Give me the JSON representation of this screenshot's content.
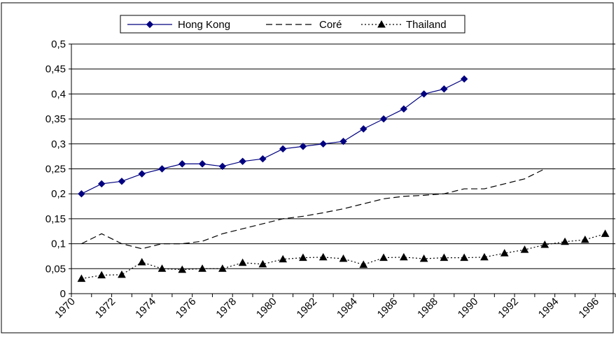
{
  "chart_data": {
    "type": "line",
    "x": [
      1970.5,
      1971.5,
      1972.5,
      1973.5,
      1974.5,
      1975.5,
      1976.5,
      1977.5,
      1978.5,
      1979.5,
      1980.5,
      1981.5,
      1982.5,
      1983.5,
      1984.5,
      1985.5,
      1986.5,
      1987.5,
      1988.5,
      1989.5,
      1990.5,
      1991.5,
      1992.5,
      1993.5,
      1994.5,
      1995.5,
      1996.5
    ],
    "xlim": [
      1970,
      1997
    ],
    "ylim": [
      0,
      0.5
    ],
    "x_ticks": [
      "1970",
      "1972",
      "1974",
      "1976",
      "1978",
      "1980",
      "1982",
      "1984",
      "1986",
      "1988",
      "1990",
      "1992",
      "1994",
      "1996"
    ],
    "y_ticks": [
      "0",
      "0,05",
      "0,1",
      "0,15",
      "0,2",
      "0,25",
      "0,3",
      "0,35",
      "0,4",
      "0,45",
      "0,5"
    ],
    "grid": true,
    "legend_position": "top",
    "series": [
      {
        "name": "Hong Kong",
        "style": "solid-diamond",
        "color": "#000080",
        "values": [
          0.2,
          0.22,
          0.225,
          0.24,
          0.25,
          0.26,
          0.26,
          0.255,
          0.265,
          0.27,
          0.29,
          0.295,
          0.3,
          0.305,
          0.33,
          0.35,
          0.37,
          0.4,
          0.41,
          0.43,
          null,
          null,
          null,
          null,
          null,
          null,
          null
        ]
      },
      {
        "name": "Coré",
        "style": "dashed",
        "color": "#000000",
        "values": [
          0.1,
          0.12,
          0.1,
          0.09,
          0.1,
          0.1,
          0.105,
          0.12,
          0.13,
          0.14,
          0.15,
          0.155,
          0.162,
          0.17,
          0.18,
          0.19,
          0.195,
          0.197,
          0.2,
          0.21,
          0.21,
          0.22,
          0.23,
          0.25,
          null,
          null,
          null
        ]
      },
      {
        "name": "Thailand",
        "style": "dotted-triangle",
        "color": "#000000",
        "values": [
          0.03,
          0.037,
          0.038,
          0.063,
          0.05,
          0.048,
          0.05,
          0.05,
          0.062,
          0.059,
          0.069,
          0.072,
          0.073,
          0.07,
          0.058,
          0.072,
          0.073,
          0.07,
          0.072,
          0.072,
          0.073,
          0.081,
          0.088,
          0.098,
          0.104,
          0.108,
          0.12
        ]
      }
    ]
  }
}
